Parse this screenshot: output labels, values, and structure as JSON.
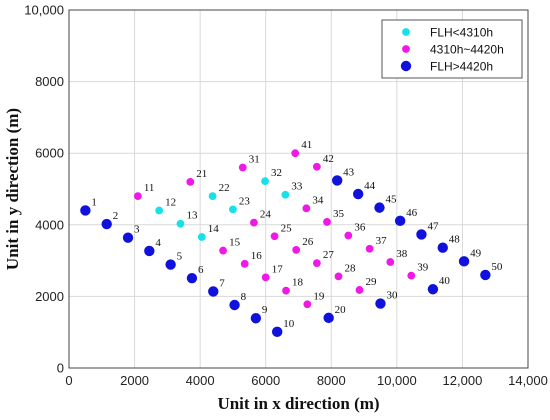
{
  "chart_data": {
    "type": "scatter",
    "xlabel": "Unit in x direction (m)",
    "ylabel": "Unit in y direction (m)",
    "xlim": [
      0,
      14000
    ],
    "ylim": [
      0,
      10000
    ],
    "xticks": [
      0,
      2000,
      4000,
      6000,
      8000,
      10000,
      12000,
      14000
    ],
    "xtick_labels": [
      "0",
      "2000",
      "4000",
      "6000",
      "8000",
      "10,000",
      "12,000",
      "14,000"
    ],
    "yticks": [
      0,
      2000,
      4000,
      6000,
      8000,
      10000
    ],
    "ytick_labels": [
      "0",
      "2000",
      "4000",
      "6000",
      "8000",
      "10,000"
    ],
    "grid": true,
    "legend_position": "top-right",
    "series": [
      {
        "name": "FLH<4310h",
        "color": "#16e0e8",
        "marker": "small-circle",
        "points": [
          {
            "id": "12",
            "x": 2750,
            "y": 4400
          },
          {
            "id": "13",
            "x": 3400,
            "y": 4030
          },
          {
            "id": "14",
            "x": 4050,
            "y": 3660
          },
          {
            "id": "22",
            "x": 4380,
            "y": 4800
          },
          {
            "id": "23",
            "x": 5000,
            "y": 4430
          },
          {
            "id": "32",
            "x": 5980,
            "y": 5220
          },
          {
            "id": "33",
            "x": 6600,
            "y": 4840
          }
        ]
      },
      {
        "name": "4310h~4420h",
        "color": "#f018e6",
        "marker": "small-circle",
        "points": [
          {
            "id": "11",
            "x": 2100,
            "y": 4800
          },
          {
            "id": "15",
            "x": 4700,
            "y": 3280
          },
          {
            "id": "16",
            "x": 5360,
            "y": 2910
          },
          {
            "id": "17",
            "x": 6000,
            "y": 2530
          },
          {
            "id": "18",
            "x": 6620,
            "y": 2160
          },
          {
            "id": "19",
            "x": 7270,
            "y": 1780
          },
          {
            "id": "21",
            "x": 3700,
            "y": 5200
          },
          {
            "id": "24",
            "x": 5640,
            "y": 4060
          },
          {
            "id": "25",
            "x": 6270,
            "y": 3680
          },
          {
            "id": "26",
            "x": 6930,
            "y": 3300
          },
          {
            "id": "27",
            "x": 7560,
            "y": 2930
          },
          {
            "id": "28",
            "x": 8220,
            "y": 2560
          },
          {
            "id": "29",
            "x": 8860,
            "y": 2180
          },
          {
            "id": "31",
            "x": 5300,
            "y": 5600
          },
          {
            "id": "34",
            "x": 7240,
            "y": 4460
          },
          {
            "id": "35",
            "x": 7870,
            "y": 4080
          },
          {
            "id": "36",
            "x": 8520,
            "y": 3700
          },
          {
            "id": "37",
            "x": 9170,
            "y": 3330
          },
          {
            "id": "38",
            "x": 9800,
            "y": 2960
          },
          {
            "id": "39",
            "x": 10440,
            "y": 2580
          },
          {
            "id": "41",
            "x": 6900,
            "y": 6000
          },
          {
            "id": "42",
            "x": 7560,
            "y": 5620
          }
        ]
      },
      {
        "name": "FLH>4420h",
        "color": "#1111dd",
        "marker": "large-circle",
        "points": [
          {
            "id": "1",
            "x": 500,
            "y": 4400
          },
          {
            "id": "2",
            "x": 1150,
            "y": 4020
          },
          {
            "id": "3",
            "x": 1800,
            "y": 3640
          },
          {
            "id": "4",
            "x": 2450,
            "y": 3270
          },
          {
            "id": "5",
            "x": 3100,
            "y": 2890
          },
          {
            "id": "6",
            "x": 3750,
            "y": 2510
          },
          {
            "id": "7",
            "x": 4400,
            "y": 2140
          },
          {
            "id": "8",
            "x": 5050,
            "y": 1760
          },
          {
            "id": "9",
            "x": 5700,
            "y": 1390
          },
          {
            "id": "10",
            "x": 6350,
            "y": 1010
          },
          {
            "id": "20",
            "x": 7920,
            "y": 1400
          },
          {
            "id": "30",
            "x": 9500,
            "y": 1800
          },
          {
            "id": "40",
            "x": 11100,
            "y": 2200
          },
          {
            "id": "43",
            "x": 8180,
            "y": 5240
          },
          {
            "id": "44",
            "x": 8820,
            "y": 4860
          },
          {
            "id": "45",
            "x": 9470,
            "y": 4480
          },
          {
            "id": "46",
            "x": 10100,
            "y": 4110
          },
          {
            "id": "47",
            "x": 10750,
            "y": 3730
          },
          {
            "id": "48",
            "x": 11400,
            "y": 3360
          },
          {
            "id": "49",
            "x": 12050,
            "y": 2980
          },
          {
            "id": "50",
            "x": 12700,
            "y": 2600
          }
        ]
      }
    ]
  }
}
